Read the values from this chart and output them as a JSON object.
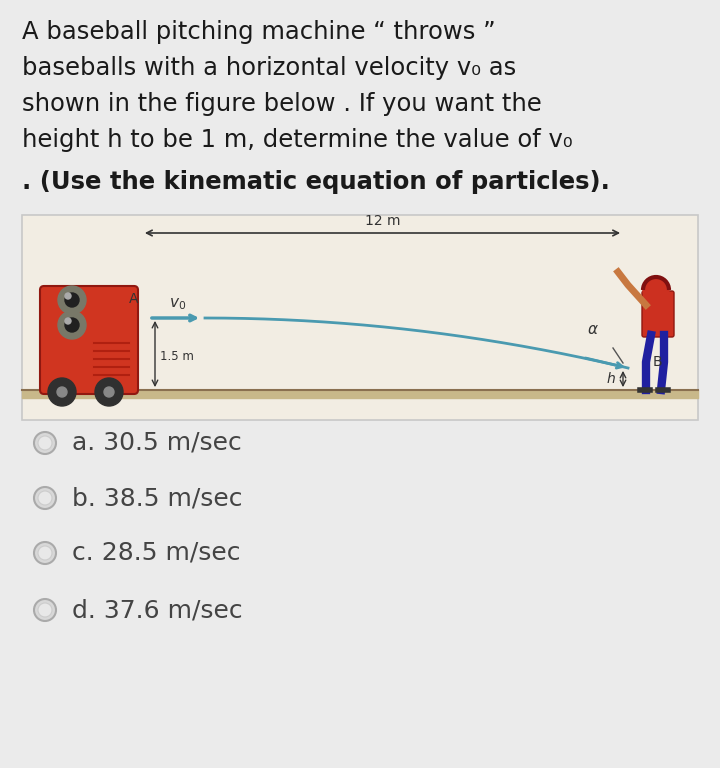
{
  "bg_color": "#ebebeb",
  "title_lines": [
    "A baseball pitching machine “ throws ”",
    "baseballs with a horizontal velocity v₀ as",
    "shown in the figure below . If you want the",
    "height h to be 1 m, determine the value of v₀"
  ],
  "title_bold_line": ". (Use the kinematic equation of particles).",
  "options": [
    "a. 30.5 m/sec",
    "b. 38.5 m/sec",
    "c. 28.5 m/sec",
    "d. 37.6 m/sec"
  ],
  "diagram_bg": "#f2ede3",
  "diagram_border": "#c8c8c8",
  "ground_color": "#c8b88a",
  "traj_color": "#4a9ab0",
  "dim_color": "#333333",
  "text_color": "#1a1a1a",
  "option_text_color": "#444444",
  "machine_red": "#d03520",
  "machine_dark": "#901810",
  "wheel_color": "#303030",
  "batter_red": "#cc3020",
  "batter_blue": "#2020a0"
}
